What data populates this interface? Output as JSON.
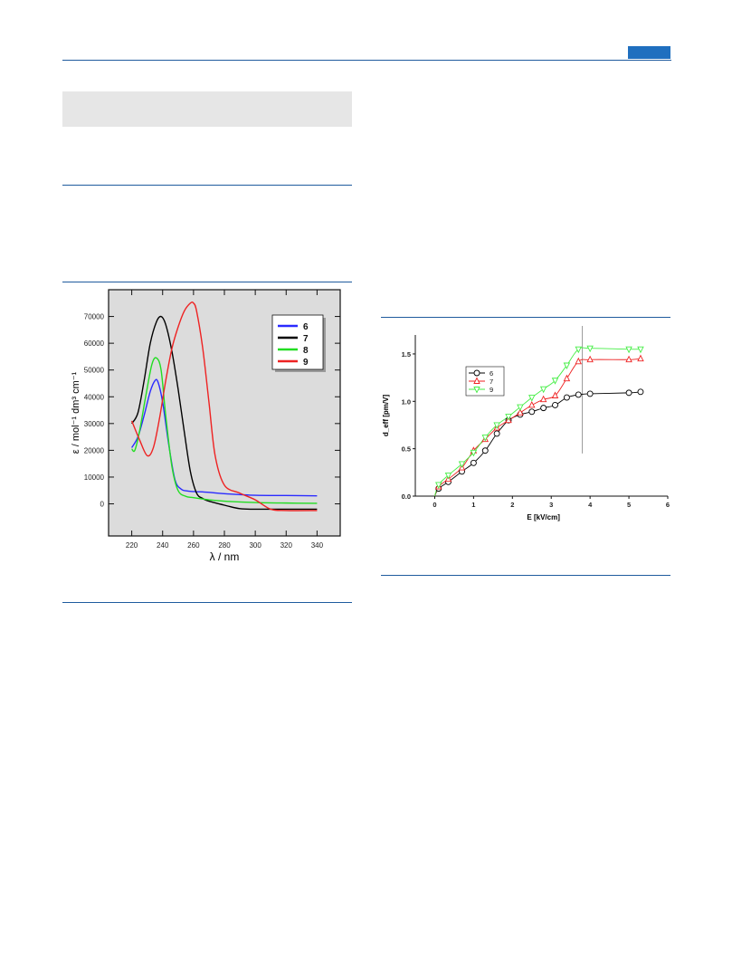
{
  "colors": {
    "accent": "#1f6fbf",
    "rule": "#1f5b9e",
    "box": "#e6e6e6"
  },
  "chart_data": [
    {
      "type": "line",
      "xlabel": "λ / nm",
      "ylabel": "ε / mol⁻¹ dm³ cm⁻¹",
      "xlim": [
        205,
        355
      ],
      "ylim": [
        -12000,
        80000
      ],
      "xticks": [
        220,
        240,
        260,
        280,
        300,
        320,
        340
      ],
      "yticks": [
        0,
        10000,
        20000,
        30000,
        40000,
        50000,
        60000,
        70000
      ],
      "grid": false,
      "legend": "top-right",
      "series": [
        {
          "name": "6",
          "color": "#2a2aff",
          "x": [
            220,
            224,
            228,
            232,
            235,
            237,
            240,
            244,
            248,
            252,
            256,
            260,
            270,
            280,
            300,
            320,
            340
          ],
          "y": [
            21000,
            25000,
            33000,
            42000,
            46000,
            45500,
            38000,
            22000,
            9000,
            5500,
            4800,
            4600,
            4300,
            3800,
            3200,
            3100,
            3000
          ]
        },
        {
          "name": "7",
          "color": "#000000",
          "x": [
            220,
            224,
            228,
            232,
            236,
            239,
            242,
            246,
            250,
            254,
            258,
            262,
            266,
            270,
            280,
            290,
            300,
            320,
            340
          ],
          "y": [
            30000,
            34000,
            46000,
            60000,
            68000,
            70000,
            67000,
            57000,
            43000,
            27000,
            12000,
            4000,
            2000,
            1000,
            -500,
            -1800,
            -2000,
            -2000,
            -2000
          ]
        },
        {
          "name": "8",
          "color": "#22dd22",
          "x": [
            220,
            222,
            225,
            229,
            233,
            236,
            239,
            242,
            246,
            250,
            255,
            260,
            270,
            280,
            300,
            320,
            340
          ],
          "y": [
            20500,
            20000,
            27000,
            40000,
            52000,
            54500,
            50000,
            33000,
            14000,
            5000,
            2800,
            2300,
            1500,
            1000,
            500,
            300,
            200
          ]
        },
        {
          "name": "9",
          "color": "#ee2222",
          "x": [
            220,
            225,
            230,
            234,
            238,
            242,
            246,
            250,
            254,
            258,
            260,
            262,
            266,
            270,
            274,
            280,
            290,
            300,
            310,
            320,
            340
          ],
          "y": [
            31000,
            24000,
            18000,
            21000,
            32000,
            46000,
            58000,
            66000,
            72000,
            75000,
            75000,
            72000,
            58000,
            38000,
            18000,
            7000,
            4000,
            1500,
            -2000,
            -2500,
            -2500
          ]
        }
      ]
    },
    {
      "type": "line",
      "xlabel": "E [kV/cm]",
      "ylabel": "d_eff [pm/V]",
      "xlim": [
        -0.5,
        6
      ],
      "ylim": [
        0,
        1.7
      ],
      "xticks": [
        0,
        1,
        2,
        3,
        4,
        5,
        6
      ],
      "yticks": [
        0.0,
        0.5,
        1.0,
        1.5
      ],
      "ytick_labels": [
        "0.0",
        "0.5",
        "1.0",
        "1.5"
      ],
      "grid": false,
      "legend": "top-left",
      "annotations": [
        {
          "type": "vertical-line",
          "x": 3.8,
          "color": "#999999"
        }
      ],
      "series": [
        {
          "name": "6",
          "color": "#000000",
          "marker": "circle",
          "x": [
            0.1,
            0.35,
            0.7,
            1.0,
            1.3,
            1.6,
            1.9,
            2.2,
            2.5,
            2.8,
            3.1,
            3.4,
            3.7,
            4.0,
            5.0,
            5.3
          ],
          "y": [
            0.08,
            0.15,
            0.26,
            0.35,
            0.48,
            0.66,
            0.8,
            0.86,
            0.89,
            0.93,
            0.96,
            1.04,
            1.07,
            1.08,
            1.09,
            1.1
          ]
        },
        {
          "name": "7",
          "color": "#ee2222",
          "marker": "triangle-up",
          "x": [
            0.1,
            0.35,
            0.7,
            1.0,
            1.3,
            1.6,
            1.9,
            2.2,
            2.5,
            2.8,
            3.1,
            3.4,
            3.7,
            4.0,
            5.0,
            5.3
          ],
          "y": [
            0.1,
            0.18,
            0.3,
            0.48,
            0.6,
            0.72,
            0.8,
            0.88,
            0.96,
            1.02,
            1.06,
            1.24,
            1.42,
            1.44,
            1.44,
            1.45
          ]
        },
        {
          "name": "9",
          "color": "#44ee44",
          "marker": "triangle-down",
          "x": [
            0.1,
            0.35,
            0.7,
            1.0,
            1.3,
            1.6,
            1.9,
            2.2,
            2.5,
            2.8,
            3.1,
            3.4,
            3.7,
            4.0,
            5.0,
            5.3
          ],
          "y": [
            0.12,
            0.22,
            0.34,
            0.46,
            0.62,
            0.75,
            0.84,
            0.94,
            1.04,
            1.13,
            1.22,
            1.38,
            1.55,
            1.56,
            1.55,
            1.55
          ]
        }
      ]
    }
  ]
}
